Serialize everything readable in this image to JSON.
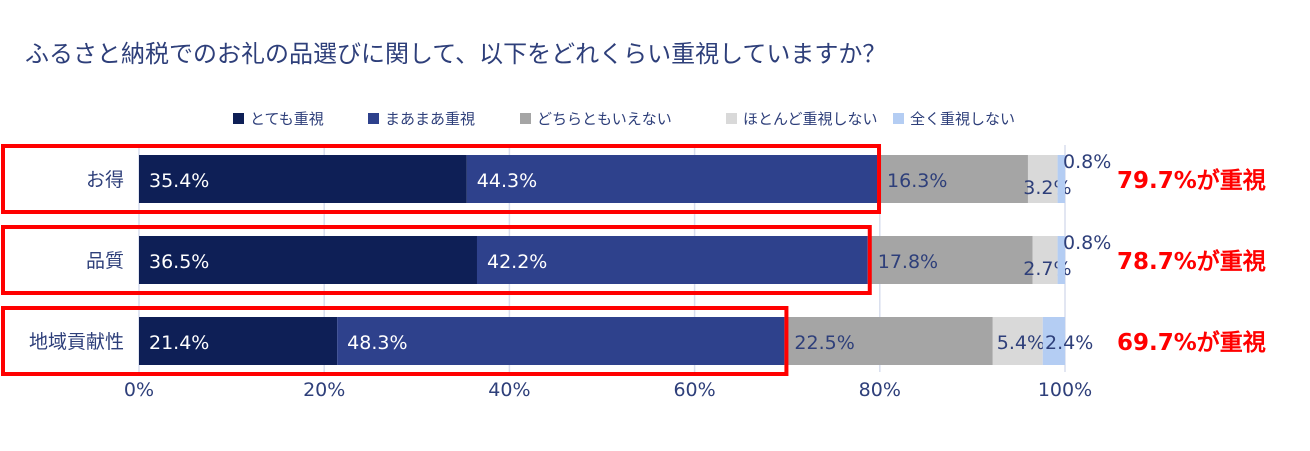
{
  "chart_data": {
    "type": "bar",
    "orientation": "horizontal",
    "stacked": true,
    "title": "ふるさと納税でのお礼の品選びに関して、以下をどれくらい重視していますか？",
    "categories": [
      "お得",
      "品質",
      "地域貢献性"
    ],
    "series": [
      {
        "name": "とても重視",
        "color": "#0e1f56",
        "values": [
          35.4,
          36.5,
          21.4
        ],
        "labels": [
          "35.4%",
          "36.5%",
          "21.4%"
        ]
      },
      {
        "name": "まあまあ重視",
        "color": "#2e418c",
        "values": [
          44.3,
          42.2,
          48.3
        ],
        "labels": [
          "44.3%",
          "42.2%",
          "48.3%"
        ]
      },
      {
        "name": "どちらともいえない",
        "color": "#a5a5a5",
        "values": [
          16.3,
          17.8,
          22.5
        ],
        "labels": [
          "16.3%",
          "17.8%",
          "22.5%"
        ]
      },
      {
        "name": "ほとんど重視しない",
        "color": "#d9d9d9",
        "values": [
          3.2,
          2.7,
          5.4
        ],
        "labels": [
          "3.2%",
          "2.7%",
          "5.4%"
        ]
      },
      {
        "name": "全く重視しない",
        "color": "#b4cdf3",
        "values": [
          0.8,
          0.8,
          2.4
        ],
        "labels": [
          "0.8%",
          "0.8%",
          "2.4%"
        ]
      }
    ],
    "xlim": [
      0,
      100
    ],
    "xticks": [
      "0%",
      "20%",
      "40%",
      "60%",
      "80%",
      "100%"
    ],
    "grid": true,
    "legend": "top",
    "annotations": [
      "79.7%が重視",
      "78.7%が重視",
      "69.7%が重視"
    ],
    "annotation_color": "#ff0000",
    "highlight_color": "#ff0000",
    "text_color": "#2e3f7a"
  }
}
